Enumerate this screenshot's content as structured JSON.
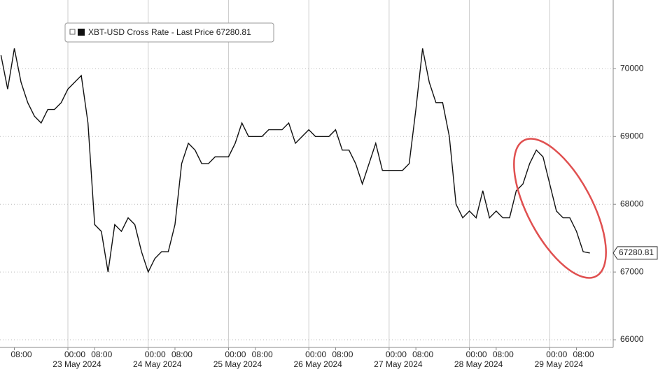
{
  "chart_data": {
    "type": "line",
    "categories": [
      null,
      null,
      "08:00",
      null,
      null,
      null,
      null,
      null,
      null,
      null,
      "00:00",
      null,
      null,
      null,
      "08:00",
      null,
      null,
      null,
      null,
      null,
      null,
      null,
      "00:00",
      null,
      null,
      null,
      "08:00",
      null,
      null,
      null,
      null,
      null,
      null,
      null,
      "00:00",
      null,
      null,
      null,
      "08:00",
      null,
      null,
      null,
      null,
      null,
      null,
      null,
      "00:00",
      null,
      null,
      null,
      "08:00",
      null,
      null,
      null,
      null,
      null,
      null,
      null,
      "00:00",
      null,
      null,
      null,
      "08:00",
      null,
      null,
      null,
      null,
      null,
      null,
      null,
      "00:00",
      null,
      null,
      null,
      "08:00",
      null,
      null,
      null,
      null,
      null,
      null,
      null,
      "00:00",
      null,
      null,
      null,
      "08:00",
      null,
      null
    ],
    "dates": [
      null,
      null,
      null,
      null,
      null,
      null,
      null,
      null,
      null,
      null,
      "23 May 2024",
      null,
      null,
      null,
      null,
      null,
      null,
      null,
      null,
      null,
      null,
      null,
      "24 May 2024",
      null,
      null,
      null,
      null,
      null,
      null,
      null,
      null,
      null,
      null,
      null,
      "25 May 2024",
      null,
      null,
      null,
      null,
      null,
      null,
      null,
      null,
      null,
      null,
      null,
      "26 May 2024",
      null,
      null,
      null,
      null,
      null,
      null,
      null,
      null,
      null,
      null,
      null,
      "27 May 2024",
      null,
      null,
      null,
      null,
      null,
      null,
      null,
      null,
      null,
      null,
      null,
      "28 May 2024",
      null,
      null,
      null,
      null,
      null,
      null,
      null,
      null,
      null,
      null,
      null,
      "29 May 2024",
      null,
      null,
      null,
      null,
      null,
      null
    ],
    "series": [
      {
        "name": "XBT-USD Cross Rate - Last Price 67280.81",
        "color": "#111111",
        "values": [
          70200,
          69700,
          70300,
          69800,
          69500,
          69300,
          69200,
          69400,
          69400,
          69500,
          69700,
          69800,
          69900,
          69200,
          67700,
          67600,
          67000,
          67700,
          67600,
          67800,
          67700,
          67300,
          67000,
          67200,
          67300,
          67300,
          67700,
          68600,
          68900,
          68800,
          68600,
          68600,
          68700,
          68700,
          68700,
          68900,
          69200,
          69000,
          69000,
          69000,
          69100,
          69100,
          69100,
          69200,
          68900,
          69000,
          69100,
          69000,
          69000,
          69000,
          69100,
          68800,
          68800,
          68600,
          68300,
          68600,
          68900,
          68500,
          68500,
          68500,
          68500,
          68600,
          69400,
          70300,
          69800,
          69500,
          69500,
          69000,
          68000,
          67800,
          67900,
          67800,
          68200,
          67800,
          67900,
          67800,
          67800,
          68200,
          68300,
          68600,
          68800,
          68700,
          68300,
          67900,
          67800,
          67800,
          67600,
          67300,
          67280.81
        ]
      }
    ],
    "ylim": [
      65887,
      71015
    ],
    "yticks": [
      66000,
      67000,
      68000,
      69000,
      70000
    ],
    "grid": true,
    "legend": "top-left"
  }
}
